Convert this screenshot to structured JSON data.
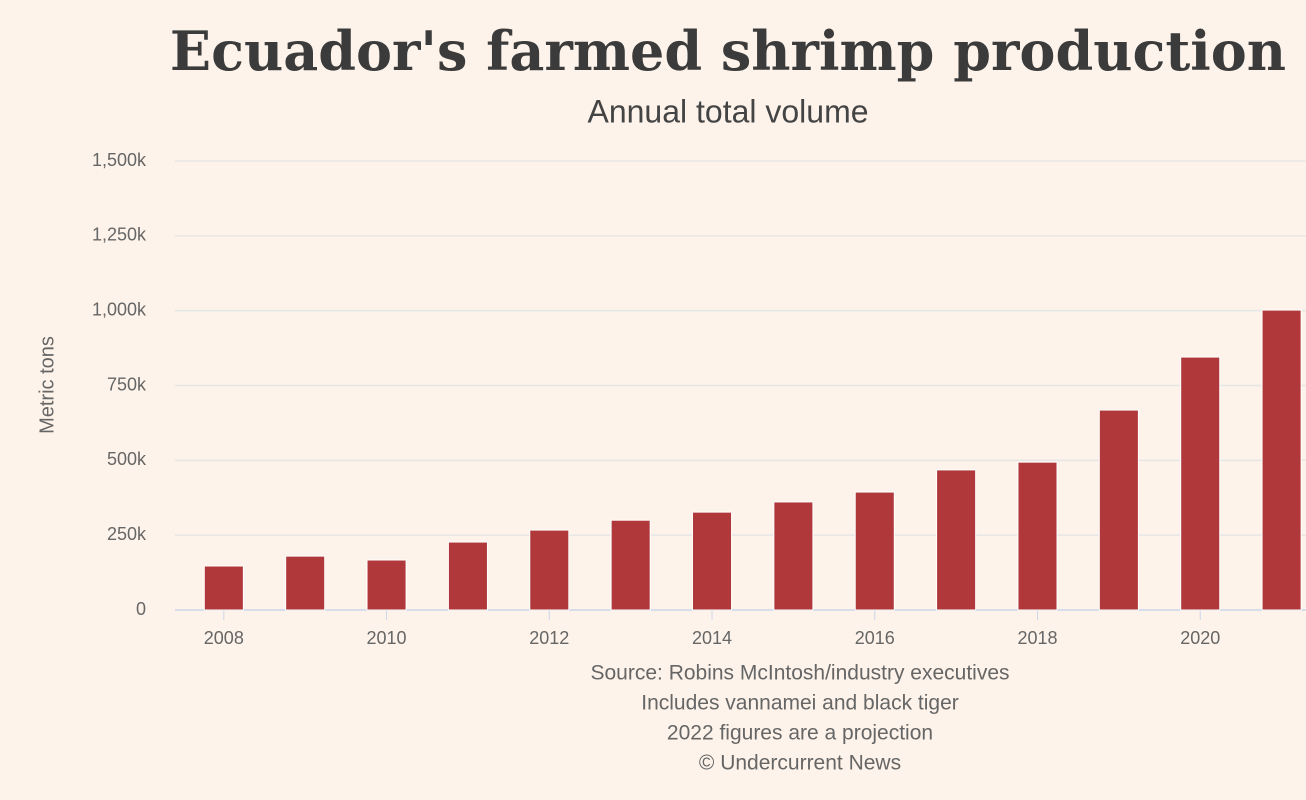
{
  "chart_data": {
    "type": "bar",
    "title": "Ecuador's farmed shrimp production",
    "subtitle": "Annual total volume",
    "y_label": "Metric tons",
    "notes": [
      "Source: Robins McIntosh/industry executives",
      "Includes vannamei and black tiger",
      "2022 figures are a projection",
      "© Undercurrent News"
    ],
    "x": [
      2008,
      2009,
      2010,
      2011,
      2012,
      2013,
      2014,
      2015,
      2016,
      2017,
      2018,
      2019,
      2020,
      2021
    ],
    "values": [
      147000,
      180000,
      167000,
      227000,
      267000,
      300000,
      327000,
      361000,
      394000,
      468000,
      494000,
      668000,
      845000,
      1002000
    ],
    "color": "#b0383a",
    "xlim": [
      2007.4,
      2021.3
    ],
    "xticks": [
      2008,
      2010,
      2012,
      2014,
      2016,
      2018,
      2020
    ],
    "ylim": [
      0,
      1500000
    ],
    "yticks": [
      0,
      {
        "value": 250000,
        "label": "250k"
      },
      {
        "value": 500000,
        "label": "500k"
      },
      {
        "value": 750000,
        "label": "750k"
      },
      {
        "value": 1000000,
        "label": "1,000k"
      },
      {
        "value": 1250000,
        "label": "1,250k"
      },
      {
        "value": 1500000,
        "label": "1,500k"
      }
    ],
    "grid": true
  }
}
